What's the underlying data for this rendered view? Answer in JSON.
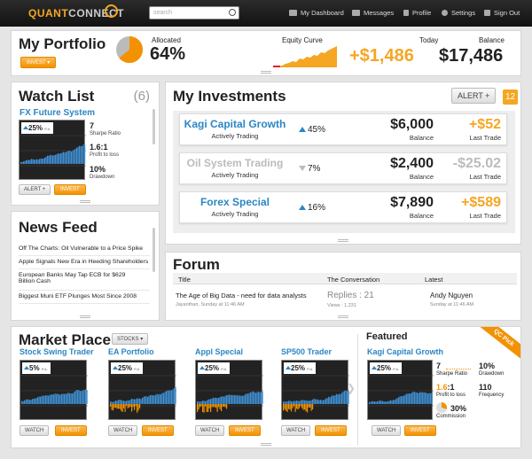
{
  "topbar": {
    "logo_a": "QUANT",
    "logo_b": "CONNECT",
    "search_placeholder": "search",
    "nav": [
      "My Dashboard",
      "Messages",
      "Profile",
      "Settings",
      "Sign Out"
    ]
  },
  "portfolio": {
    "title": "My Portfolio",
    "invest_label": "INVEST ▾",
    "allocated_label": "Allocated",
    "allocated_value": "64%",
    "allocated_fraction": 0.64,
    "equity_label": "Equity Curve",
    "today_label": "Today",
    "today_value": "+$1,486",
    "balance_label": "Balance",
    "balance_value": "$17,486"
  },
  "watchlist": {
    "title": "Watch List",
    "count": "(6)",
    "item_title": "FX Future System",
    "pct": "25%",
    "pct_sub": "P.A.",
    "sharpe_value": "7",
    "sharpe_label": "Sharpe Ratio",
    "ptl_value": "1.6:1",
    "ptl_label": "Profit to loss",
    "dd_value": "10%",
    "dd_label": "Drawdown",
    "alert_label": "ALERT +",
    "invest_label": "INVEST"
  },
  "newsfeed": {
    "title": "News Feed",
    "items": [
      "Off The Charts: Oil Vulnerable to a Price Spike",
      "Apple Signals New Era in Heeding Shareholders",
      "European Banks May Tap ECB for $629 Billion Cash",
      "Biggest Muni ETF Plunges Most Since 2008"
    ]
  },
  "investments": {
    "title": "My Investments",
    "alert_label": "ALERT +",
    "badge": "12",
    "rows": [
      {
        "name": "Kagi Capital Growth",
        "status": "Actively Trading",
        "pct": "45%",
        "dir": "up",
        "balance": "$6,000",
        "balance_label": "Balance",
        "trade": "+$52",
        "trade_label": "Last Trade"
      },
      {
        "name": "Oil System Trading",
        "status": "Actively Trading",
        "pct": "7%",
        "dir": "down",
        "balance": "$2,400",
        "balance_label": "Balance",
        "trade": "-$25.02",
        "trade_label": "Last Trade"
      },
      {
        "name": "Forex Special",
        "status": "Actively Trading",
        "pct": "16%",
        "dir": "up",
        "balance": "$7,890",
        "balance_label": "Balance",
        "trade": "+$589",
        "trade_label": "Last Trade"
      }
    ]
  },
  "forum": {
    "title": "Forum",
    "col_title": "Title",
    "col_conv": "The Conversation",
    "col_latest": "Latest",
    "thread_title": "The Age of Big Data - need for data analysts",
    "thread_meta": "Jayanthan, Sunday at 11:46 AM",
    "replies": "Replies : 21",
    "views": "Views : 1,231",
    "latest_user": "Andy Nguyen",
    "latest_time": "Sunday at 11:46 AM"
  },
  "marketplace": {
    "title": "Market Place",
    "stocks_label": "STOCKS ▾",
    "watch_label": "WATCH",
    "invest_label": "INVEST",
    "cards": [
      {
        "name": "Stock Swing Trader",
        "pct": "5%"
      },
      {
        "name": "EA Portfolio",
        "pct": "25%"
      },
      {
        "name": "Appl Special",
        "pct": "25%"
      },
      {
        "name": "SP500 Trader",
        "pct": "25%"
      }
    ],
    "featured_label": "Featured",
    "qc_pick": "QC Pick",
    "featured": {
      "name": "Kagi Capital Growth",
      "pct": "25%",
      "pct_sub": "P.A.",
      "sharpe_value": "7",
      "sharpe_label": "Sharpe Ratio",
      "dd_value": "10%",
      "dd_label": "Drawdown",
      "ptl_value_a": "1.6",
      "ptl_value_b": ":1",
      "ptl_label": "Profit to loss",
      "freq_value": "110",
      "freq_label": "Frequency",
      "comm_value": "30%",
      "comm_label": "Commission"
    }
  },
  "colors": {
    "accent_orange": "#f39200",
    "accent_blue": "#2b86c5",
    "chart_bg": "#222222"
  }
}
